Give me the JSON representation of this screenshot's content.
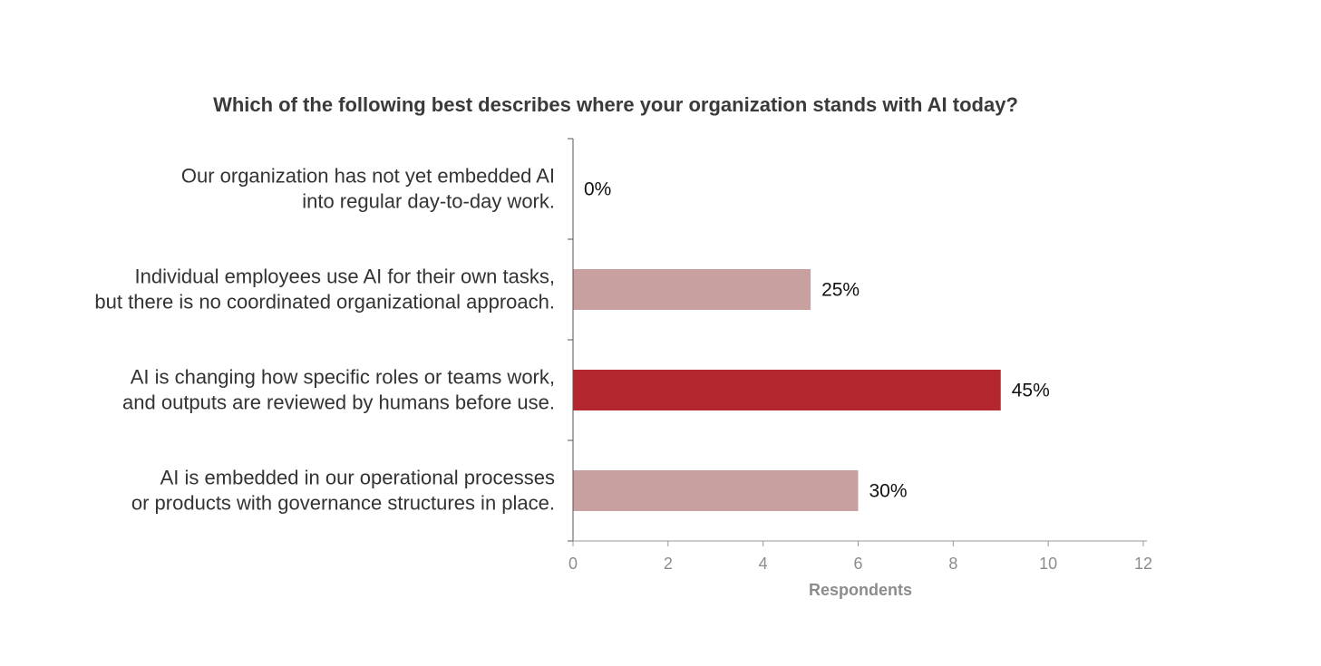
{
  "chart_data": {
    "type": "bar",
    "orientation": "horizontal",
    "title": "Which of the following best describes where your organization stands with AI today?",
    "xlabel": "Respondents",
    "ylabel": "",
    "xlim": [
      0,
      12
    ],
    "x_ticks": [
      "0",
      "2",
      "4",
      "6",
      "8",
      "10",
      "12"
    ],
    "grid": false,
    "categories": [
      [
        "Our organization has not yet embedded AI",
        "into regular day-to-day work."
      ],
      [
        "Individual employees use AI for their own tasks,",
        "but there is no coordinated organizational approach."
      ],
      [
        "AI is changing how specific roles or teams work,",
        "and outputs are reviewed by humans before use."
      ],
      [
        "AI is embedded in our operational processes",
        "or products with governance structures in place."
      ]
    ],
    "values": [
      0,
      5,
      9,
      6
    ],
    "data_labels": [
      "0%",
      "25%",
      "45%",
      "30%"
    ],
    "bar_colors": [
      "#c8a0a0",
      "#c8a0a0",
      "#b5272e",
      "#c8a0a0"
    ]
  }
}
